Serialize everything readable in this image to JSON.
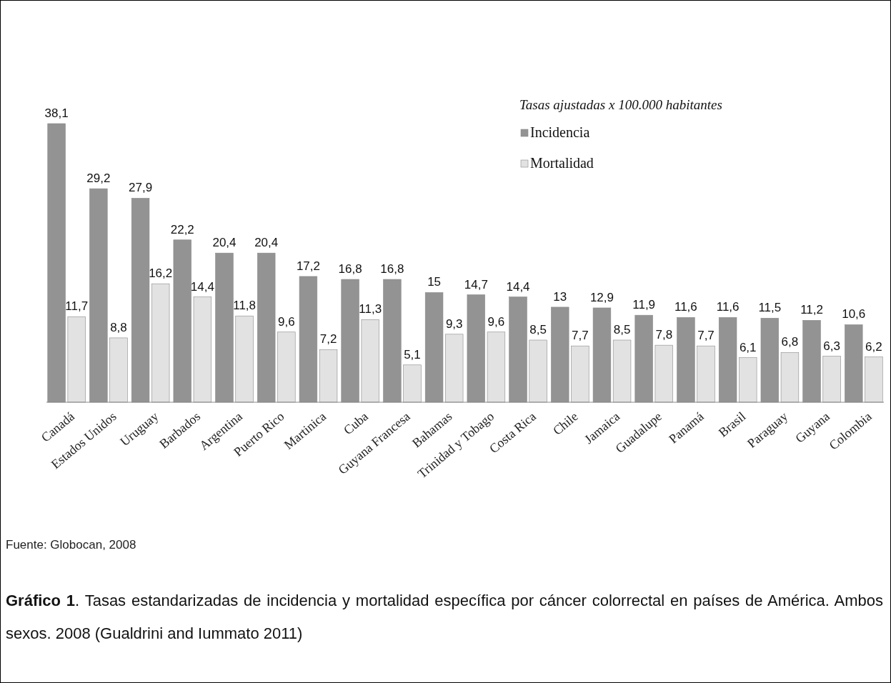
{
  "chart_data": {
    "type": "bar",
    "legend_title": "Tasas ajustadas x 100.000 habitantes",
    "categories": [
      "Canadá",
      "Estados Unidos",
      "Uruguay",
      "Barbados",
      "Argentina",
      "Puerto Rico",
      "Martinica",
      "Cuba",
      "Guyana Francesa",
      "Bahamas",
      "Trinidad y Tobago",
      "Costa Rica",
      "Chile",
      "Jamaica",
      "Guadalupe",
      "Panamá",
      "Brasil",
      "Paraguay",
      "Guyana",
      "Colombia"
    ],
    "series": [
      {
        "name": "Incidencia",
        "color": "#939393",
        "values": [
          38.1,
          29.2,
          27.9,
          22.2,
          20.4,
          20.4,
          17.2,
          16.8,
          16.8,
          15,
          14.7,
          14.4,
          13,
          12.9,
          11.9,
          11.6,
          11.6,
          11.5,
          11.2,
          10.6
        ],
        "value_labels": [
          "38,1",
          "29,2",
          "27,9",
          "22,2",
          "20,4",
          "20,4",
          "17,2",
          "16,8",
          "16,8",
          "15",
          "14,7",
          "14,4",
          "13",
          "12,9",
          "11,9",
          "11,6",
          "11,6",
          "11,5",
          "11,2",
          "10,6"
        ]
      },
      {
        "name": "Mortalidad",
        "color": "#e2e2e2",
        "values": [
          11.7,
          8.8,
          16.2,
          14.4,
          11.8,
          9.6,
          7.2,
          11.3,
          5.1,
          9.3,
          9.6,
          8.5,
          7.7,
          8.5,
          7.8,
          7.7,
          6.1,
          6.8,
          6.3,
          6.2
        ],
        "value_labels": [
          "11,7",
          "8,8",
          "16,2",
          "14,4",
          "11,8",
          "9,6",
          "7,2",
          "11,3",
          "5,1",
          "9,3",
          "9,6",
          "8,5",
          "7,7",
          "8,5",
          "7,8",
          "7,7",
          "6,1",
          "6,8",
          "6,3",
          "6,2"
        ]
      }
    ],
    "legend": "top right",
    "annotations": [
      "Fuente: Globocan, 2008",
      "Gráfico 1. Tasas estandarizadas de incidencia y mortalidad específica por cáncer colorrectal en países de América. Ambos sexos. 2008 (Gualdrini and Iummato 2011)"
    ]
  }
}
